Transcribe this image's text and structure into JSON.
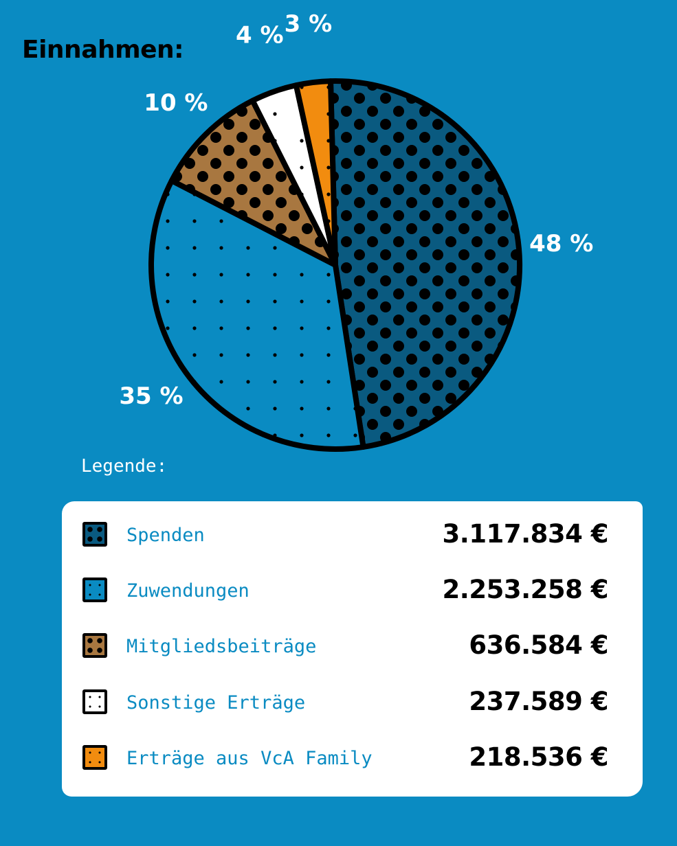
{
  "chart_data": {
    "type": "pie",
    "title": "Einnahmen:",
    "legend_title": "Legende:",
    "legend_placement": "bottom",
    "slices": [
      {
        "name": "Spenden",
        "percent": 48,
        "percent_label": "48 %",
        "amount": "3.117.834 €",
        "color": "#0a5a80",
        "pattern": "dots-large"
      },
      {
        "name": "Zuwendungen",
        "percent": 35,
        "percent_label": "35 %",
        "amount": "2.253.258 €",
        "color": "#0a8bc2",
        "pattern": "dots-small"
      },
      {
        "name": "Mitgliedsbeiträge",
        "percent": 10,
        "percent_label": "10 %",
        "amount": "636.584 €",
        "color": "#a87740",
        "pattern": "dots-large"
      },
      {
        "name": "Sonstige Erträge",
        "percent": 4,
        "percent_label": "4 %",
        "amount": "237.589 €",
        "color": "#ffffff",
        "pattern": "dots-small"
      },
      {
        "name": "Erträge aus VcA Family",
        "percent": 3,
        "percent_label": "3 %",
        "amount": "218.536 €",
        "color": "#f28c0f",
        "pattern": "dots-small"
      }
    ]
  },
  "colors": {
    "background": "#0a8bc2",
    "outline": "#000000",
    "legend_card": "#ffffff",
    "legend_text": "#0a8bc2"
  }
}
